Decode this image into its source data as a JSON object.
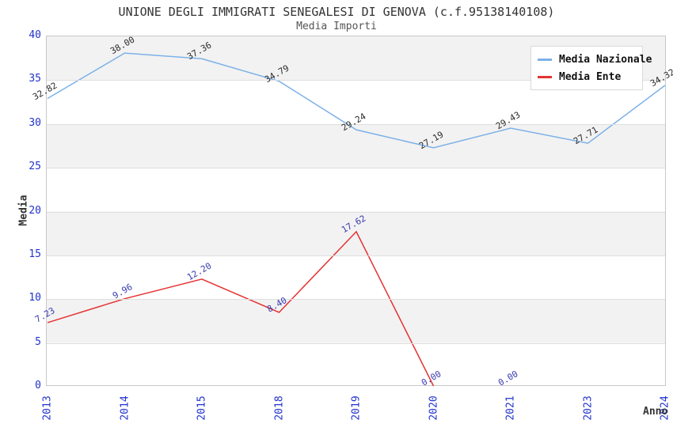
{
  "title": "UNIONE DEGLI IMMIGRATI SENEGALESI DI GENOVA (c.f.95138140108)",
  "subtitle": "Media Importi",
  "chart_data": {
    "type": "line",
    "title": "UNIONE DEGLI IMMIGRATI SENEGALESI DI GENOVA (c.f.95138140108)",
    "subtitle": "Media Importi",
    "xlabel": "Anno",
    "ylabel": "Media",
    "categories": [
      "2013",
      "2014",
      "2015",
      "2018",
      "2019",
      "2020",
      "2021",
      "2023",
      "2024"
    ],
    "ylim": [
      0,
      40
    ],
    "ytick_step": 5,
    "ytick_labels": [
      "0",
      "5",
      "10",
      "15",
      "20",
      "25",
      "30",
      "35",
      "40"
    ],
    "grid": "alternating-horizontal-bands",
    "legend_position": "top-right-inside",
    "series": [
      {
        "name": "Media Nazionale",
        "color": "#7cb1e8",
        "label_color": "#2b2b2b",
        "values": [
          32.82,
          38.0,
          37.36,
          34.79,
          29.24,
          27.19,
          29.43,
          27.71,
          34.32
        ],
        "labels": [
          "32.82",
          "38.00",
          "37.36",
          "34.79",
          "29.24",
          "27.19",
          "29.43",
          "27.71",
          "34.32"
        ],
        "line_end_index": 8
      },
      {
        "name": "Media Ente",
        "color": "#e63232",
        "label_color": "#3939b0",
        "values": [
          7.23,
          9.96,
          12.2,
          8.4,
          17.62,
          0.0,
          0.0,
          null,
          null
        ],
        "labels": [
          "7.23",
          "9.96",
          "12.20",
          "8.40",
          "17.62",
          "0.00",
          "0.00",
          null,
          null
        ],
        "line_end_index": 5
      }
    ]
  },
  "colors": {
    "band_gray": "#f2f2f2",
    "plot_border": "#c8c8c8",
    "axis_tick_text": "#2233cc",
    "title_text": "#333333"
  }
}
